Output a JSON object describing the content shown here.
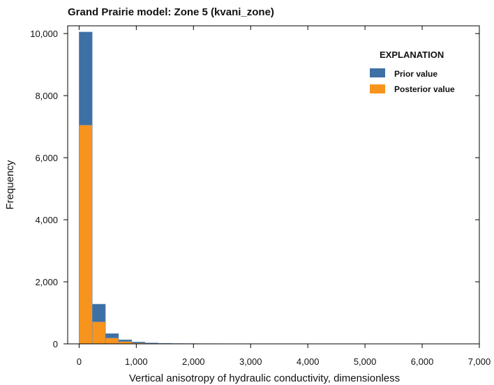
{
  "chart_data": {
    "type": "bar",
    "title": "Grand Prairie model: Zone 5 (kvani_zone)",
    "xlabel": "Vertical anisotropy of hydraulic conductivity, dimensionless",
    "ylabel": "Frequency",
    "xlim": [
      -200,
      7000
    ],
    "ylim": [
      0,
      10250
    ],
    "xticks": [
      0,
      1000,
      2000,
      3000,
      4000,
      5000,
      6000,
      7000
    ],
    "xtick_labels": [
      "0",
      "1,000",
      "2,000",
      "3,000",
      "4,000",
      "5,000",
      "6,000",
      "7,000"
    ],
    "yticks": [
      0,
      2000,
      4000,
      6000,
      8000,
      10000
    ],
    "ytick_labels": [
      "0",
      "2,000",
      "4,000",
      "6,000",
      "8,000",
      "10,000"
    ],
    "bin_width": 230,
    "bin_starts": [
      0,
      230,
      460,
      690,
      920,
      1150,
      1380,
      1610,
      1840,
      2070,
      2300,
      2530,
      2760,
      2990,
      3220,
      3450,
      3680,
      3910,
      4140,
      4370,
      4600,
      4830,
      5060,
      5290,
      5520,
      5750,
      5980,
      6210,
      6440
    ],
    "series": [
      {
        "name": "Prior value",
        "color": "#3d70a5",
        "values": [
          10050,
          1280,
          330,
          130,
          60,
          30,
          15,
          10,
          8,
          6,
          5,
          4,
          3,
          3,
          2,
          2,
          2,
          1,
          1,
          1,
          1,
          1,
          1,
          1,
          1,
          1,
          1,
          1,
          1
        ]
      },
      {
        "name": "Posterior value",
        "color": "#f7941d",
        "values": [
          7050,
          710,
          190,
          75,
          30,
          12,
          6,
          3,
          2,
          1,
          1,
          0,
          0,
          0,
          0,
          0,
          0,
          0,
          0,
          0,
          0,
          0,
          0,
          0,
          0,
          0,
          0,
          0,
          0
        ]
      }
    ],
    "legend": {
      "title": "EXPLANATION",
      "placement": "top-right"
    },
    "grid": false
  }
}
